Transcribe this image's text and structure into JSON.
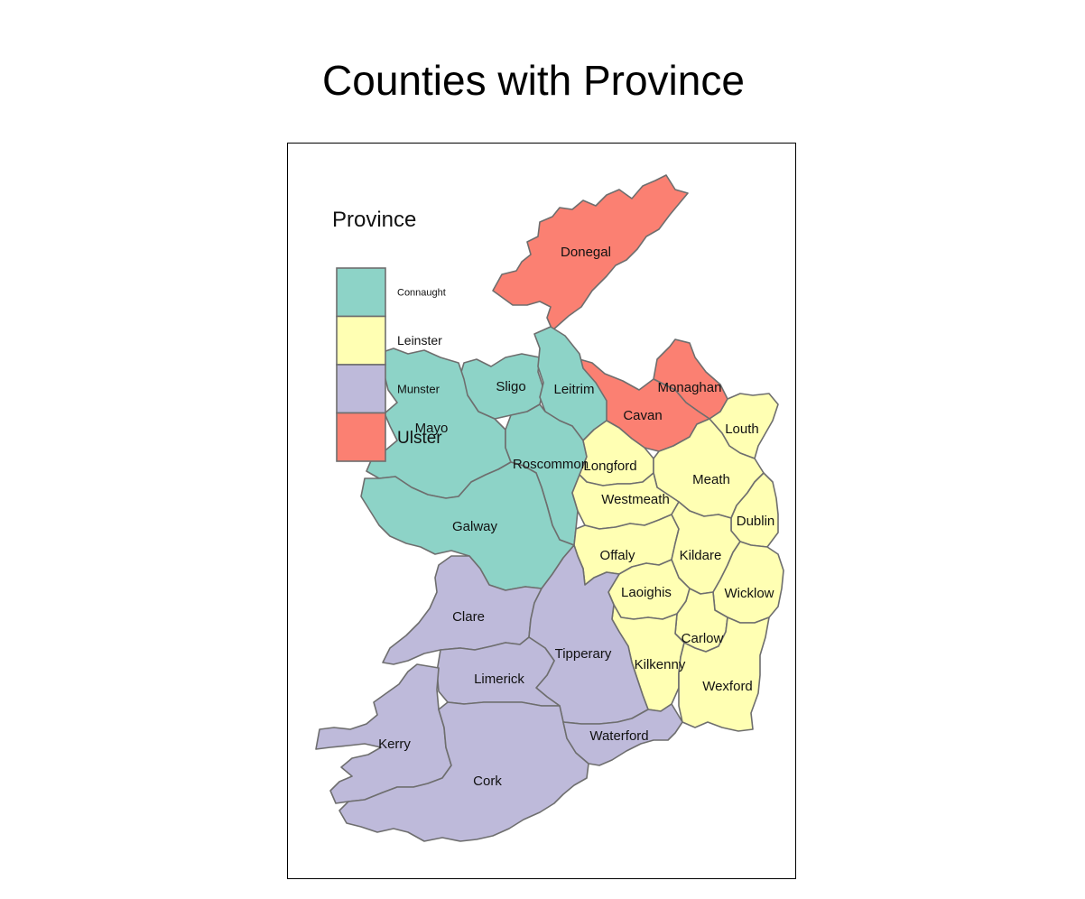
{
  "title": "Counties with Province",
  "legend": {
    "title": "Province",
    "items": [
      {
        "label": "Connaught",
        "color": "#8dd3c7"
      },
      {
        "label": "Leinster",
        "color": "#ffffb3"
      },
      {
        "label": "Munster",
        "color": "#bebada"
      },
      {
        "label": "Ulster",
        "color": "#fb8072"
      }
    ]
  },
  "colors": {
    "Connaught": "#8dd3c7",
    "Leinster": "#ffffb3",
    "Munster": "#bebada",
    "Ulster": "#fb8072",
    "border": "#6e6e6e"
  },
  "counties": [
    {
      "name": "Donegal",
      "province": "Ulster"
    },
    {
      "name": "Monaghan",
      "province": "Ulster"
    },
    {
      "name": "Cavan",
      "province": "Ulster"
    },
    {
      "name": "Sligo",
      "province": "Connaught"
    },
    {
      "name": "Leitrim",
      "province": "Connaught"
    },
    {
      "name": "Mayo",
      "province": "Connaught"
    },
    {
      "name": "Roscommon",
      "province": "Connaught"
    },
    {
      "name": "Galway",
      "province": "Connaught"
    },
    {
      "name": "Louth",
      "province": "Leinster"
    },
    {
      "name": "Longford",
      "province": "Leinster"
    },
    {
      "name": "Meath",
      "province": "Leinster"
    },
    {
      "name": "Westmeath",
      "province": "Leinster"
    },
    {
      "name": "Dublin",
      "province": "Leinster"
    },
    {
      "name": "Offaly",
      "province": "Leinster"
    },
    {
      "name": "Kildare",
      "province": "Leinster"
    },
    {
      "name": "Laoighis",
      "province": "Leinster"
    },
    {
      "name": "Wicklow",
      "province": "Leinster"
    },
    {
      "name": "Carlow",
      "province": "Leinster"
    },
    {
      "name": "Kilkenny",
      "province": "Leinster"
    },
    {
      "name": "Wexford",
      "province": "Leinster"
    },
    {
      "name": "Clare",
      "province": "Munster"
    },
    {
      "name": "Tipperary",
      "province": "Munster"
    },
    {
      "name": "Limerick",
      "province": "Munster"
    },
    {
      "name": "Kerry",
      "province": "Munster"
    },
    {
      "name": "Cork",
      "province": "Munster"
    },
    {
      "name": "Waterford",
      "province": "Munster"
    }
  ]
}
